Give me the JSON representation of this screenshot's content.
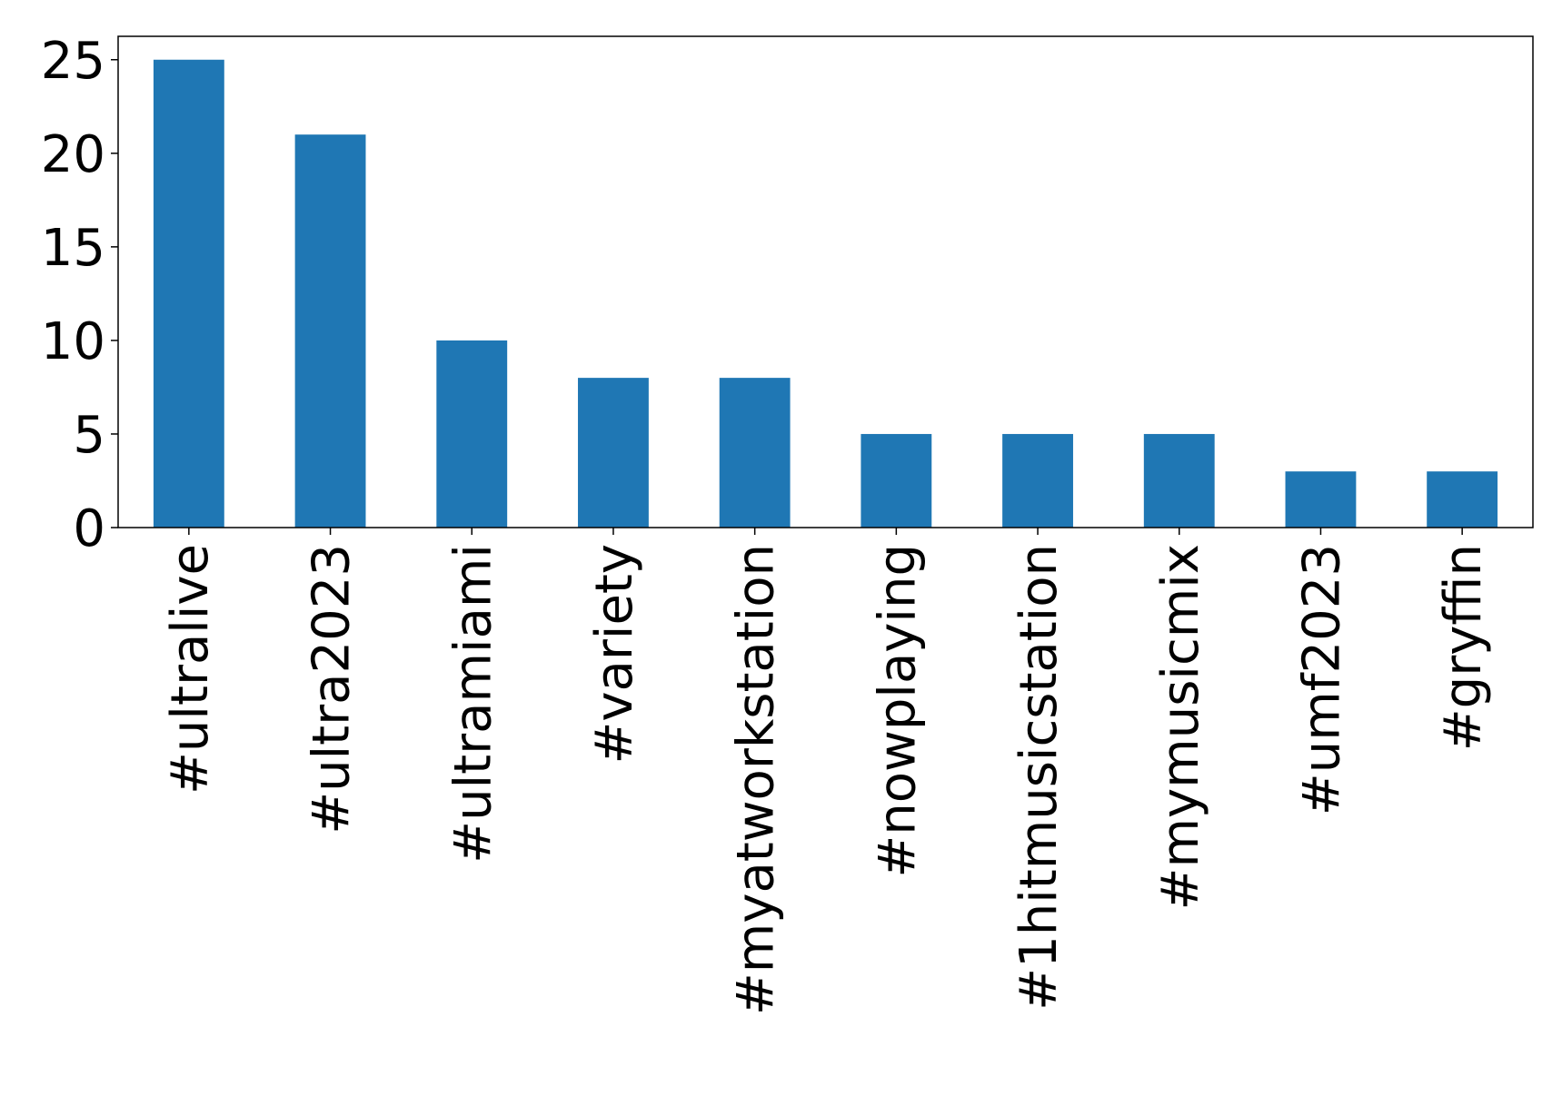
{
  "chart_data": {
    "type": "bar",
    "categories": [
      "#ultralive",
      "#ultra2023",
      "#ultramiami",
      "#variety",
      "#myatworkstation",
      "#nowplaying",
      "#1hitmusicstation",
      "#mymusicmix",
      "#umf2023",
      "#gryffin"
    ],
    "values": [
      25,
      21,
      10,
      8,
      8,
      5,
      5,
      5,
      3,
      3
    ],
    "color": "#1f77b4",
    "ylim": [
      0,
      26.25
    ],
    "yticks": [
      0,
      5,
      10,
      15,
      20,
      25
    ],
    "grid": false
  }
}
